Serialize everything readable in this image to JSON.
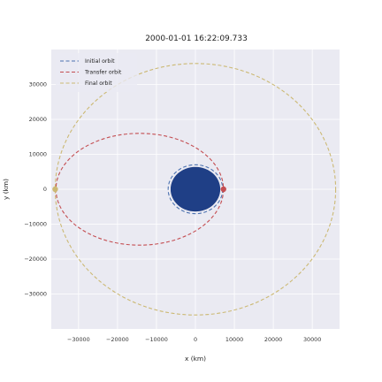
{
  "chart_data": {
    "type": "scatter",
    "title": "2000-01-01 16:22:09.733",
    "xlabel": "x (km)",
    "ylabel": "y (km)",
    "xlim": [
      -37000,
      37000
    ],
    "ylim": [
      -40000,
      40000
    ],
    "x_ticks": [
      -30000,
      -20000,
      -10000,
      0,
      10000,
      20000,
      30000
    ],
    "y_ticks": [
      -30000,
      -20000,
      -10000,
      0,
      10000,
      20000,
      30000
    ],
    "x_tick_labels": [
      "−30000",
      "−20000",
      "−10000",
      "0",
      "10000",
      "20000",
      "30000"
    ],
    "y_tick_labels": [
      "−30000",
      "−20000",
      "−10000",
      "0",
      "10000",
      "20000",
      "30000"
    ],
    "grid": true,
    "legend_position": "top-left",
    "background_color": "#eaeaf2",
    "planet": {
      "center_x": 0,
      "center_y": 0,
      "radius": 6378,
      "color": "#1f3f86"
    },
    "series": [
      {
        "name": "Initial orbit",
        "color": "#4c72b0",
        "linestyle": "dashed",
        "center_x": 0,
        "center_y": 0,
        "semi_major": 7000,
        "semi_minor": 7000
      },
      {
        "name": "Transfer orbit",
        "color": "#c44e52",
        "linestyle": "dashed",
        "center_x": -14300,
        "center_y": 0,
        "semi_major": 21500,
        "semi_minor": 16000
      },
      {
        "name": "Final orbit",
        "color": "#ccb974",
        "linestyle": "dashed",
        "center_x": 0,
        "center_y": 0,
        "semi_major": 36000,
        "semi_minor": 36000
      }
    ],
    "markers": [
      {
        "x": 7200,
        "y": 0,
        "color": "#c44e52"
      },
      {
        "x": -36000,
        "y": 0,
        "color": "#ccb974"
      }
    ]
  }
}
